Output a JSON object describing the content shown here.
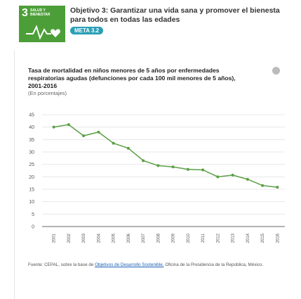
{
  "header": {
    "icon_number": "3",
    "icon_text": "SALUD Y BIENESTAR",
    "title_line1": "Objetivo 3: Garantizar una vida sana y promover el bienesta",
    "title_line2": "para todos en todas las edades",
    "badge": "META 3.2"
  },
  "chart_data": {
    "type": "line",
    "title_lines": [
      "Tasa de mortalidad en niños menores de 5 años por enfermedades",
      "respiratorias agudas (defunciones por cada 100 mil menores de 5 años),",
      "2001-2016"
    ],
    "subtitle": "(En porcentajes)",
    "categories": [
      "2001",
      "2002",
      "2003",
      "2004",
      "2005",
      "2006",
      "2007",
      "2008",
      "2009",
      "2010",
      "2011",
      "2012",
      "2013",
      "2014",
      "2015",
      "2016"
    ],
    "series": [
      {
        "name": "Tasa de mortalidad",
        "color": "#5b9f45",
        "values": [
          40,
          41,
          36.5,
          38,
          33.5,
          31.5,
          26.5,
          24.5,
          24,
          23,
          22.8,
          20,
          20.7,
          19,
          16.5,
          15.8
        ]
      }
    ],
    "ylim": [
      0,
      45
    ],
    "yticks": [
      0,
      5,
      10,
      15,
      20,
      25,
      30,
      35,
      40,
      45
    ],
    "grid": true
  },
  "source": {
    "prefix": "Fuente: CEPAL, sobre la base de ",
    "link": "Objetivos de Desarrollo Sostenible.",
    "suffix": " Oficina de la Presidencia de la República, México."
  }
}
